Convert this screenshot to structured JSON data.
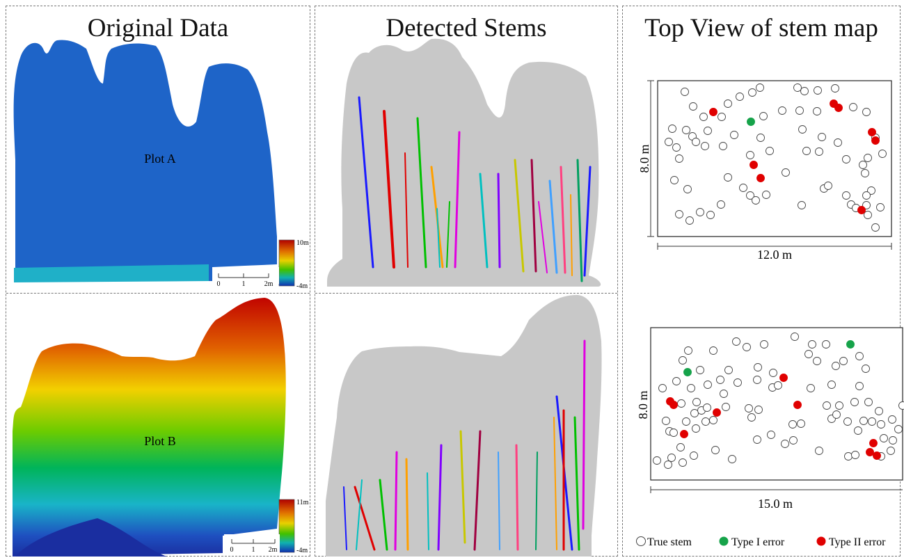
{
  "panels": {
    "original": {
      "title": "Original Data",
      "plot_a_label": "Plot A",
      "plot_b_label": "Plot B",
      "scale_a": {
        "ticks": [
          "0",
          "1",
          "2m"
        ],
        "color_max": "10m",
        "color_min": "-4m"
      },
      "scale_b": {
        "ticks": [
          "0",
          "1",
          "2m"
        ],
        "color_max": "11m",
        "color_min": "-4m"
      }
    },
    "detected": {
      "title": "Detected Stems"
    },
    "topview": {
      "title": "Top View of stem map",
      "map_a": {
        "width_label": "12.0 m",
        "height_label": "8.0 m"
      },
      "map_b": {
        "width_label": "15.0 m",
        "height_label": "8.0 m"
      }
    }
  },
  "legend": {
    "true_stem": "True stem",
    "type1": "Type I error",
    "type2": "Type II error"
  },
  "colors": {
    "type1": "#16a34a",
    "type2": "#e00000",
    "stem_outline": "#444444",
    "canopy_gray": "#c8c8c8"
  },
  "map_a_points": {
    "true": [
      [
        984,
        132
      ],
      [
        996,
        153
      ],
      [
        1046,
        149
      ],
      [
        1063,
        139
      ],
      [
        1081,
        133
      ],
      [
        1092,
        126
      ],
      [
        1146,
        126
      ],
      [
        1156,
        131
      ],
      [
        1175,
        130
      ],
      [
        1200,
        127
      ],
      [
        1226,
        154
      ],
      [
        1245,
        161
      ],
      [
        1149,
        159
      ],
      [
        1124,
        159
      ],
      [
        1097,
        167
      ],
      [
        1011,
        168
      ],
      [
        1017,
        188
      ],
      [
        966,
        185
      ],
      [
        986,
        187
      ],
      [
        961,
        204
      ],
      [
        972,
        212
      ],
      [
        995,
        196
      ],
      [
        1000,
        204
      ],
      [
        1013,
        210
      ],
      [
        1039,
        210
      ],
      [
        1055,
        194
      ],
      [
        976,
        228
      ],
      [
        1093,
        198
      ],
      [
        1106,
        217
      ],
      [
        1078,
        223
      ],
      [
        1037,
        168
      ],
      [
        1174,
        160
      ],
      [
        1181,
        197
      ],
      [
        1159,
        217
      ],
      [
        1177,
        218
      ],
      [
        1153,
        186
      ],
      [
        1204,
        205
      ],
      [
        1216,
        229
      ],
      [
        1240,
        237
      ],
      [
        1258,
        198
      ],
      [
        1268,
        221
      ],
      [
        1247,
        227
      ],
      [
        1243,
        249
      ],
      [
        969,
        259
      ],
      [
        988,
        272
      ],
      [
        1046,
        255
      ],
      [
        1129,
        248
      ],
      [
        1068,
        270
      ],
      [
        1078,
        281
      ],
      [
        1086,
        288
      ],
      [
        1101,
        280
      ],
      [
        1184,
        271
      ],
      [
        1190,
        267
      ],
      [
        1216,
        281
      ],
      [
        1252,
        274
      ],
      [
        1245,
        295
      ],
      [
        1265,
        298
      ],
      [
        1036,
        294
      ],
      [
        1247,
        309
      ],
      [
        976,
        308
      ],
      [
        991,
        317
      ],
      [
        1006,
        305
      ],
      [
        1021,
        309
      ],
      [
        1258,
        327
      ],
      [
        1223,
        294
      ],
      [
        1230,
        299
      ],
      [
        1245,
        281
      ],
      [
        1152,
        295
      ]
    ],
    "type1": [
      [
        1079,
        175
      ]
    ],
    "type2": [
      [
        1025,
        161
      ],
      [
        1198,
        149
      ],
      [
        1205,
        155
      ],
      [
        1253,
        190
      ],
      [
        1258,
        202
      ],
      [
        1083,
        237
      ],
      [
        1093,
        256
      ],
      [
        1238,
        302
      ]
    ]
  },
  "map_b_points": {
    "true": [
      [
        989,
        504
      ],
      [
        1058,
        491
      ],
      [
        1073,
        499
      ],
      [
        1098,
        495
      ],
      [
        1142,
        484
      ],
      [
        1167,
        495
      ],
      [
        1187,
        495
      ],
      [
        1162,
        509
      ],
      [
        1174,
        519
      ],
      [
        1201,
        526
      ],
      [
        1212,
        519
      ],
      [
        1235,
        512
      ],
      [
        1244,
        530
      ],
      [
        1025,
        504
      ],
      [
        981,
        518
      ],
      [
        1006,
        532
      ],
      [
        1047,
        532
      ],
      [
        1089,
        528
      ],
      [
        1111,
        536
      ],
      [
        952,
        558
      ],
      [
        972,
        548
      ],
      [
        993,
        558
      ],
      [
        1017,
        553
      ],
      [
        1035,
        546
      ],
      [
        1040,
        566
      ],
      [
        1060,
        550
      ],
      [
        1088,
        546
      ],
      [
        1110,
        557
      ],
      [
        1165,
        558
      ],
      [
        1195,
        553
      ],
      [
        1235,
        555
      ],
      [
        1228,
        578
      ],
      [
        1248,
        578
      ],
      [
        1263,
        591
      ],
      [
        1282,
        603
      ],
      [
        1266,
        610
      ],
      [
        1291,
        617
      ],
      [
        1270,
        630
      ],
      [
        1283,
        633
      ],
      [
        1241,
        605
      ],
      [
        1253,
        606
      ],
      [
        1233,
        619
      ],
      [
        1218,
        606
      ],
      [
        1195,
        602
      ],
      [
        1188,
        583
      ],
      [
        1206,
        583
      ],
      [
        1202,
        596
      ],
      [
        1151,
        609
      ],
      [
        1139,
        610
      ],
      [
        1140,
        633
      ],
      [
        1128,
        638
      ],
      [
        1108,
        625
      ],
      [
        1088,
        632
      ],
      [
        1076,
        587
      ],
      [
        1090,
        589
      ],
      [
        1080,
        600
      ],
      [
        998,
        594
      ],
      [
        1008,
        590
      ],
      [
        1014,
        606
      ],
      [
        1025,
        604
      ],
      [
        986,
        606
      ],
      [
        1016,
        586
      ],
      [
        979,
        580
      ],
      [
        957,
        605
      ],
      [
        1000,
        616
      ],
      [
        1043,
        585
      ],
      [
        962,
        620
      ],
      [
        968,
        622
      ],
      [
        978,
        643
      ],
      [
        1028,
        647
      ],
      [
        997,
        655
      ],
      [
        981,
        665
      ],
      [
        1052,
        660
      ],
      [
        965,
        658
      ],
      [
        960,
        668
      ],
      [
        944,
        662
      ],
      [
        1001,
        578
      ],
      [
        1177,
        648
      ],
      [
        1219,
        656
      ],
      [
        1229,
        654
      ],
      [
        1280,
        648
      ],
      [
        1266,
        656
      ],
      [
        1297,
        583
      ],
      [
        1118,
        554
      ]
    ],
    "type1": [
      [
        988,
        535
      ],
      [
        1222,
        495
      ]
    ],
    "type2": [
      [
        963,
        577
      ],
      [
        968,
        582
      ],
      [
        1030,
        593
      ],
      [
        1126,
        543
      ],
      [
        1146,
        582
      ],
      [
        983,
        624
      ],
      [
        1255,
        637
      ],
      [
        1250,
        650
      ],
      [
        1260,
        655
      ]
    ]
  }
}
